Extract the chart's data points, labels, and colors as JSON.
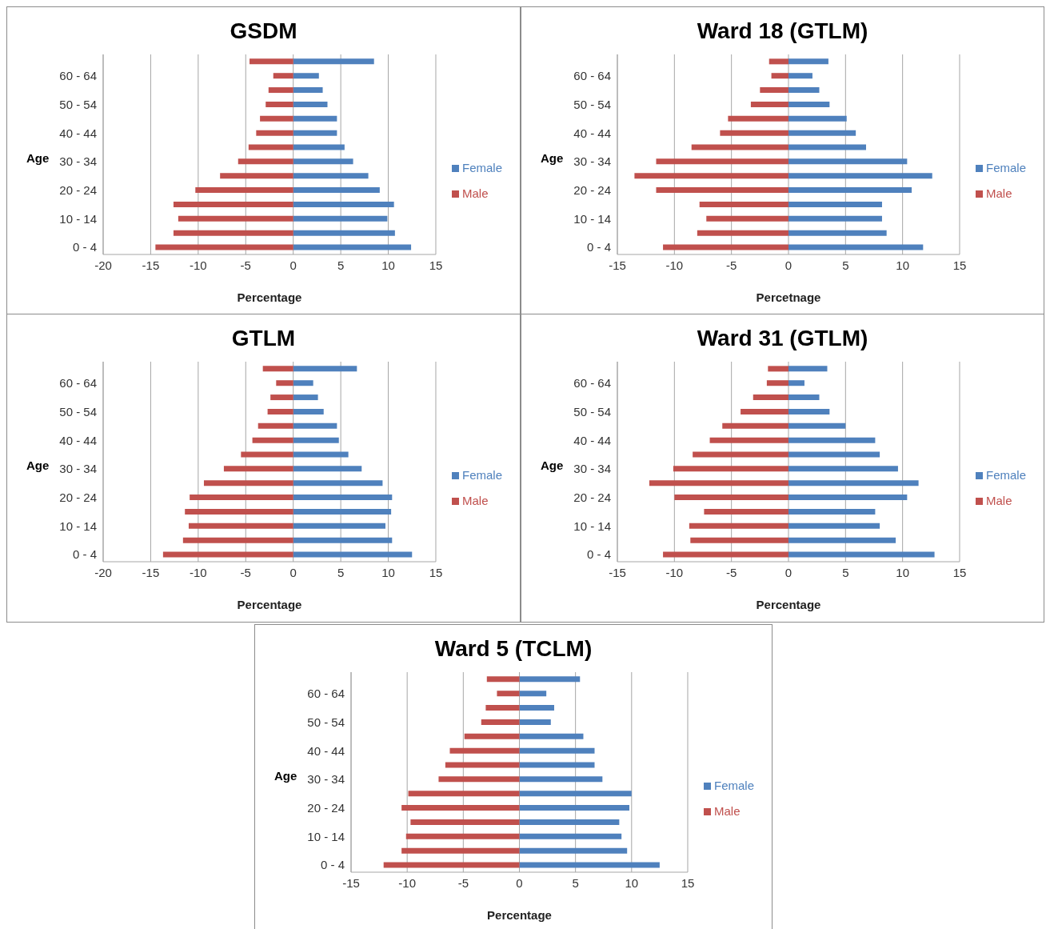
{
  "chart_data": [
    {
      "type": "bar",
      "title": "GSDM",
      "orientation": "horizontal",
      "stacked": true,
      "xlabel": "Percentage",
      "ylabel": "Age",
      "categories": [
        null,
        "60 - 64",
        null,
        "50 - 54",
        null,
        "40 - 44",
        null,
        "30 - 34",
        null,
        "20 - 24",
        null,
        "10 - 14",
        null,
        "0 - 4"
      ],
      "series": [
        {
          "name": "Female",
          "color": "#4f81bd",
          "values": [
            8.5,
            2.7,
            3.1,
            3.6,
            4.6,
            4.6,
            5.4,
            6.3,
            7.9,
            9.1,
            10.6,
            9.9,
            10.7,
            12.4
          ]
        },
        {
          "name": "Male",
          "color": "#c0504d",
          "values": [
            -4.6,
            -2.1,
            -2.6,
            -2.9,
            -3.5,
            -3.9,
            -4.7,
            -5.8,
            -7.7,
            -10.3,
            -12.6,
            -12.1,
            -12.6,
            -14.5
          ]
        }
      ],
      "xlim": [
        -20,
        15
      ],
      "xticks": [
        -20,
        -15,
        -10,
        -5,
        0,
        5,
        10,
        15
      ],
      "grid": "x",
      "legend": "right"
    },
    {
      "type": "bar",
      "title": "Ward 18 (GTLM)",
      "orientation": "horizontal",
      "stacked": true,
      "xlabel": "Percetnage",
      "ylabel": "Age",
      "categories": [
        null,
        "60 - 64",
        null,
        "50 - 54",
        null,
        "40 - 44",
        null,
        "30 - 34",
        null,
        "20 - 24",
        null,
        "10 - 14",
        null,
        "0 - 4"
      ],
      "series": [
        {
          "name": "Female",
          "color": "#4f81bd",
          "values": [
            3.5,
            2.1,
            2.7,
            3.6,
            5.1,
            5.9,
            6.8,
            10.4,
            12.6,
            10.8,
            8.2,
            8.2,
            8.6,
            11.8
          ]
        },
        {
          "name": "Male",
          "color": "#c0504d",
          "values": [
            -1.7,
            -1.5,
            -2.5,
            -3.3,
            -5.3,
            -6.0,
            -8.5,
            -11.6,
            -13.5,
            -11.6,
            -7.8,
            -7.2,
            -8.0,
            -11.0
          ]
        }
      ],
      "xlim": [
        -15,
        15
      ],
      "xticks": [
        -15,
        -10,
        -5,
        0,
        5,
        10,
        15
      ],
      "grid": "x",
      "legend": "right"
    },
    {
      "type": "bar",
      "title": "GTLM",
      "orientation": "horizontal",
      "stacked": true,
      "xlabel": "Percentage",
      "ylabel": "Age",
      "categories": [
        null,
        "60 - 64",
        null,
        "50 - 54",
        null,
        "40 - 44",
        null,
        "30 - 34",
        null,
        "20 - 24",
        null,
        "10 - 14",
        null,
        "0 - 4"
      ],
      "series": [
        {
          "name": "Female",
          "color": "#4f81bd",
          "values": [
            6.7,
            2.1,
            2.6,
            3.2,
            4.6,
            4.8,
            5.8,
            7.2,
            9.4,
            10.4,
            10.3,
            9.7,
            10.4,
            12.5
          ]
        },
        {
          "name": "Male",
          "color": "#c0504d",
          "values": [
            -3.2,
            -1.8,
            -2.4,
            -2.7,
            -3.7,
            -4.3,
            -5.5,
            -7.3,
            -9.4,
            -10.9,
            -11.4,
            -11.0,
            -11.6,
            -13.7
          ]
        }
      ],
      "xlim": [
        -20,
        15
      ],
      "xticks": [
        -20,
        -15,
        -10,
        -5,
        0,
        5,
        10,
        15
      ],
      "grid": "x",
      "legend": "right"
    },
    {
      "type": "bar",
      "title": "Ward 31 (GTLM)",
      "orientation": "horizontal",
      "stacked": true,
      "xlabel": "Percentage",
      "ylabel": "Age",
      "categories": [
        null,
        "60 - 64",
        null,
        "50 - 54",
        null,
        "40 - 44",
        null,
        "30 - 34",
        null,
        "20 - 24",
        null,
        "10 - 14",
        null,
        "0 - 4"
      ],
      "series": [
        {
          "name": "Female",
          "color": "#4f81bd",
          "values": [
            3.4,
            1.4,
            2.7,
            3.6,
            5.0,
            7.6,
            8.0,
            9.6,
            11.4,
            10.4,
            7.6,
            8.0,
            9.4,
            12.8
          ]
        },
        {
          "name": "Male",
          "color": "#c0504d",
          "values": [
            -1.8,
            -1.9,
            -3.1,
            -4.2,
            -5.8,
            -6.9,
            -8.4,
            -10.1,
            -12.2,
            -10.0,
            -7.4,
            -8.7,
            -8.6,
            -11.0
          ]
        }
      ],
      "xlim": [
        -15,
        15
      ],
      "xticks": [
        -15,
        -10,
        -5,
        0,
        5,
        10,
        15
      ],
      "grid": "x",
      "legend": "right"
    },
    {
      "type": "bar",
      "title": "Ward 5 (TCLM)",
      "orientation": "horizontal",
      "stacked": true,
      "xlabel": "Percentage",
      "ylabel": "Age",
      "categories": [
        null,
        "60 - 64",
        null,
        "50 - 54",
        null,
        "40 - 44",
        null,
        "30 - 34",
        null,
        "20 - 24",
        null,
        "10 - 14",
        null,
        "0 - 4"
      ],
      "series": [
        {
          "name": "Female",
          "color": "#4f81bd",
          "values": [
            5.4,
            2.4,
            3.1,
            2.8,
            5.7,
            6.7,
            6.7,
            7.4,
            10.0,
            9.8,
            8.9,
            9.1,
            9.6,
            12.5
          ]
        },
        {
          "name": "Male",
          "color": "#c0504d",
          "values": [
            -2.9,
            -2.0,
            -3.0,
            -3.4,
            -4.9,
            -6.2,
            -6.6,
            -7.2,
            -9.9,
            -10.5,
            -9.7,
            -10.1,
            -10.5,
            -12.1
          ]
        }
      ],
      "xlim": [
        -15,
        15
      ],
      "xticks": [
        -15,
        -10,
        -5,
        0,
        5,
        10,
        15
      ],
      "grid": "x",
      "legend": "right"
    }
  ]
}
